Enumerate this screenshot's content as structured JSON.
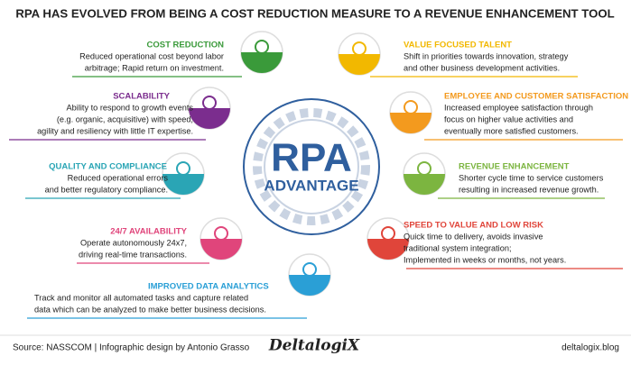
{
  "title": "RPA HAS EVOLVED FROM BEING A COST REDUCTION MEASURE TO A REVENUE ENHANCEMENT TOOL",
  "center": {
    "line1": "RPA",
    "line2": "ADVANTAGE"
  },
  "items": [
    {
      "heading": "COST REDUCTION",
      "lines": [
        "Reduced operational cost beyond labor",
        "arbitrage; Rapid return on investment."
      ]
    },
    {
      "heading": "SCALABILITY",
      "lines": [
        "Ability to respond to growth events",
        "(e.g. organic, acquisitive) with speed,",
        "agility and resiliency with little IT expertise."
      ]
    },
    {
      "heading": "QUALITY AND COMPLIANCE",
      "lines": [
        "Reduced operational errors",
        "and better regulatory compliance."
      ]
    },
    {
      "heading": "24/7 AVAILABILITY",
      "lines": [
        "Operate autonomously 24x7,",
        "driving real-time transactions."
      ]
    },
    {
      "heading": "IMPROVED DATA ANALYTICS",
      "lines": [
        "Track and monitor all automated tasks and capture related",
        "data which can be analyzed to make better business decisions."
      ]
    },
    {
      "heading": "VALUE FOCUSED TALENT",
      "lines": [
        "Shift in priorities towards innovation, strategy",
        "and other business development activities."
      ]
    },
    {
      "heading": "EMPLOYEE AND CUSTOMER SATISFACTION",
      "lines": [
        "Increased employee satisfaction through",
        "focus on higher value activities and",
        "eventually more satisfied customers."
      ]
    },
    {
      "heading": "REVENUE ENHANCEMENT",
      "lines": [
        "Shorter cycle time to service customers",
        "resulting in increased revenue growth."
      ]
    },
    {
      "heading": "SPEED TO VALUE AND LOW RISK",
      "lines": [
        "Quick time to delivery, avoids invasive",
        "traditional system integration;",
        "Implemented in weeks or months, not years."
      ]
    }
  ],
  "footer": {
    "source": "Source: NASSCOM  |  Infographic design by Antonio Grasso",
    "logo": "DeltalogiX",
    "site": "deltalogix.blog"
  }
}
